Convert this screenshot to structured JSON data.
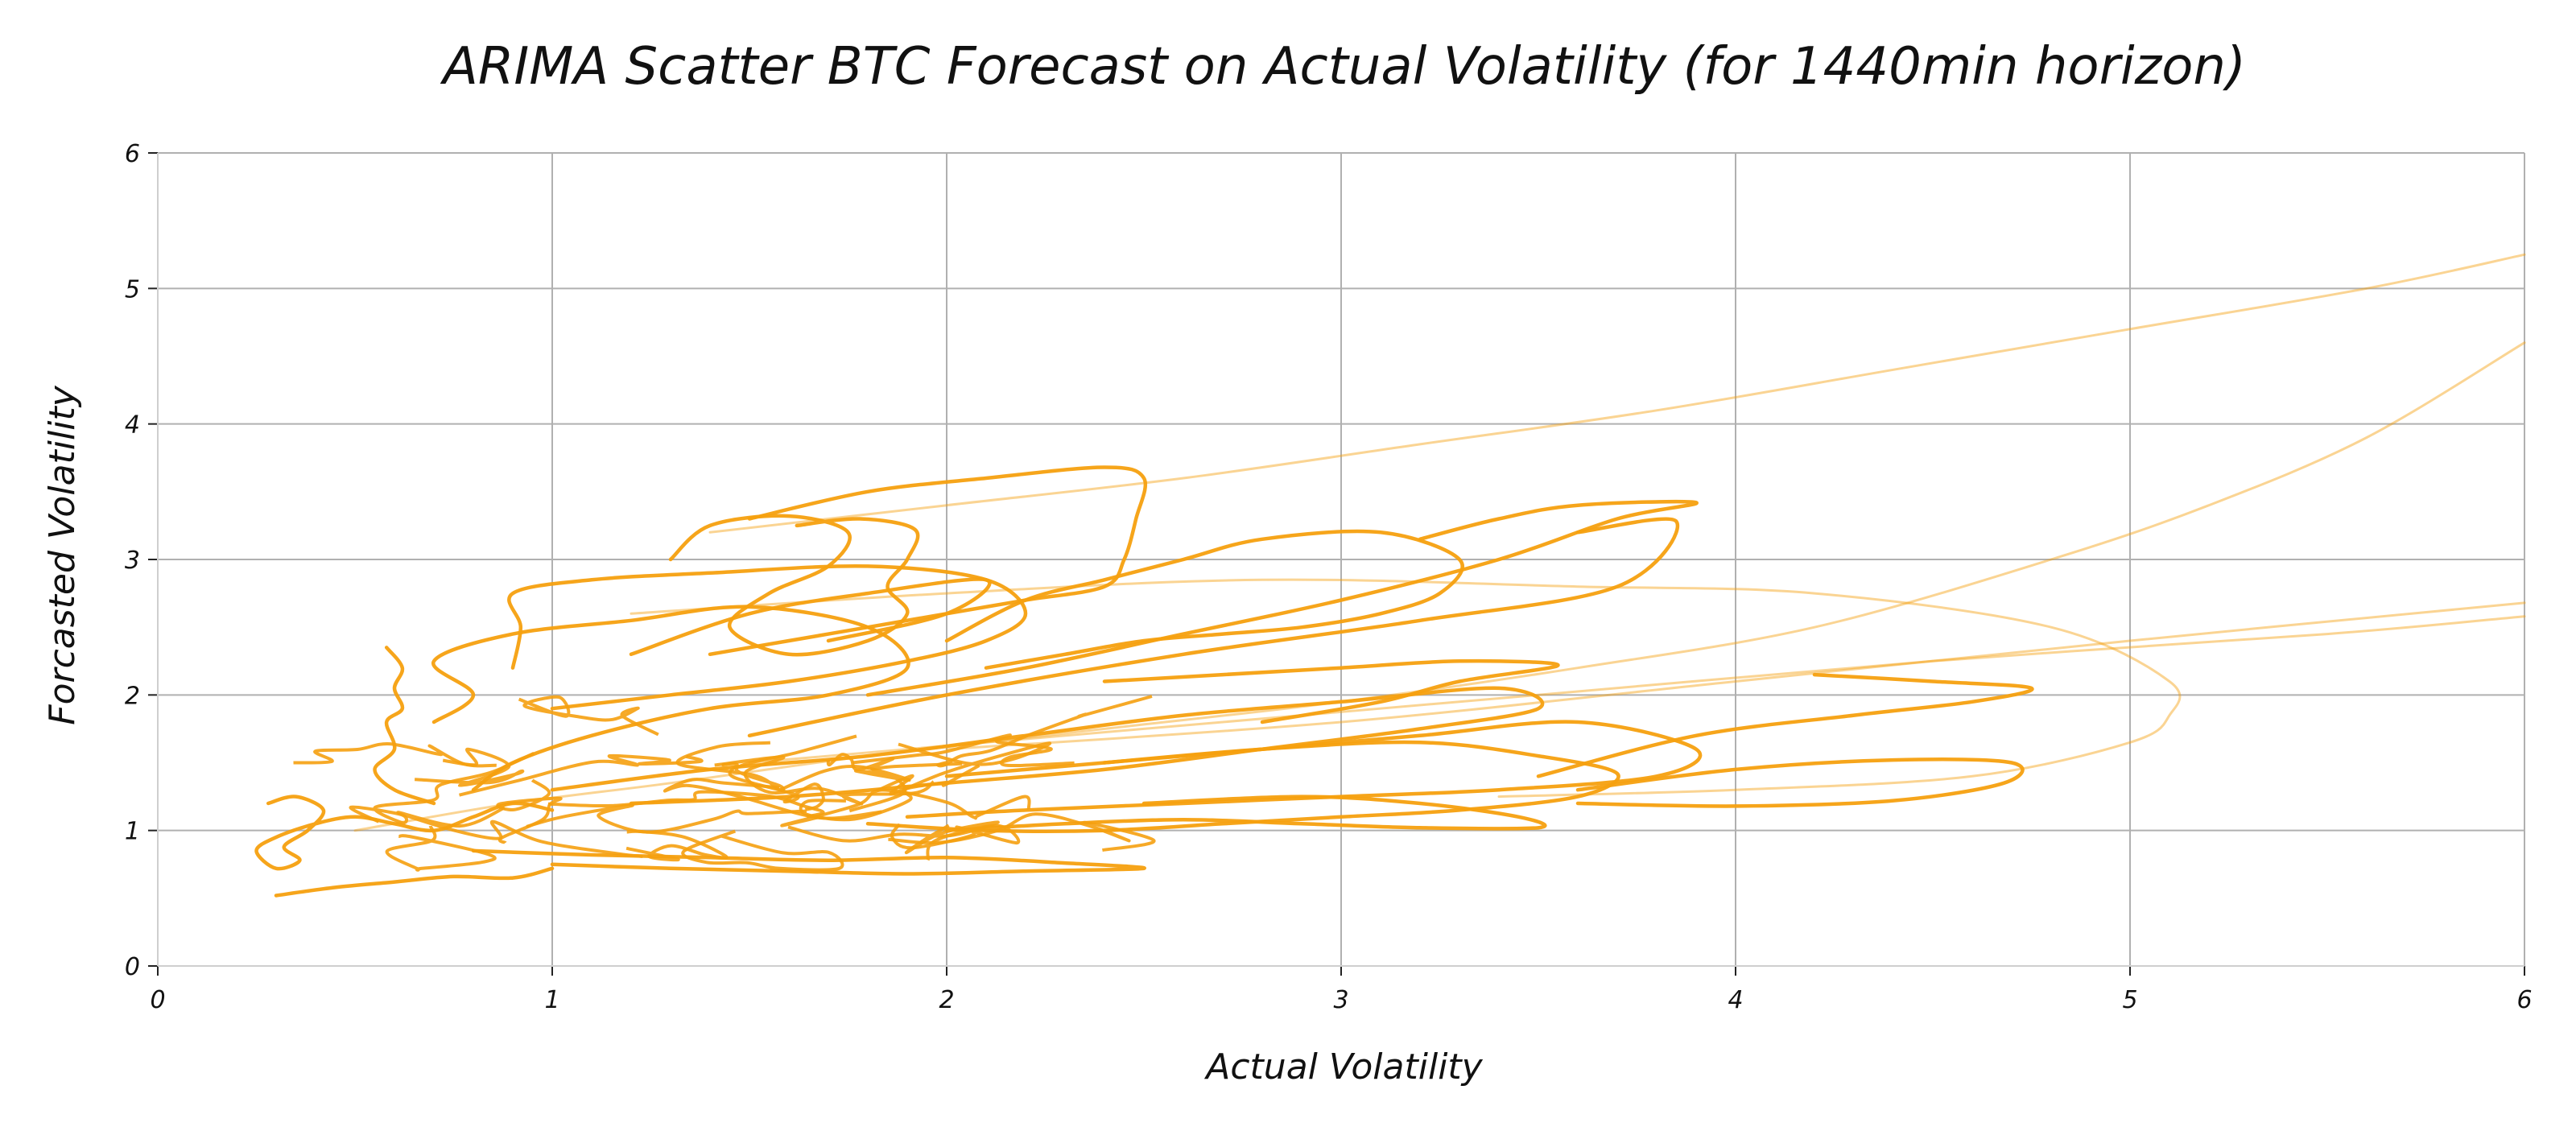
{
  "chart_data": {
    "type": "scatter",
    "title": "ARIMA Scatter BTC Forecast on Actual Volatility (for 1440min horizon)",
    "xlabel": "Actual Volatility",
    "ylabel": "Forcasted Volatility",
    "xlim": [
      0,
      6
    ],
    "ylim": [
      0,
      6
    ],
    "x_ticks": [
      "0",
      "1",
      "2",
      "3",
      "4",
      "5",
      "6"
    ],
    "y_ticks": [
      "0",
      "1",
      "2",
      "3",
      "4",
      "5",
      "6"
    ],
    "grid": true,
    "legend": "none",
    "color": "#f5a00f",
    "series": [
      {
        "style": "faint",
        "points": [
          [
            0.5,
            1.0
          ],
          [
            0.9,
            1.2
          ],
          [
            1.3,
            1.35
          ],
          [
            1.8,
            1.55
          ],
          [
            2.4,
            1.75
          ],
          [
            3.0,
            1.95
          ],
          [
            3.6,
            2.2
          ],
          [
            4.2,
            2.5
          ],
          [
            4.8,
            3.0
          ],
          [
            5.2,
            3.4
          ],
          [
            5.6,
            3.9
          ],
          [
            6.0,
            4.6
          ]
        ]
      },
      {
        "style": "faint",
        "points": [
          [
            1.4,
            3.2
          ],
          [
            2.0,
            3.4
          ],
          [
            2.6,
            3.6
          ],
          [
            3.2,
            3.85
          ],
          [
            3.8,
            4.1
          ],
          [
            4.4,
            4.4
          ],
          [
            5.0,
            4.7
          ],
          [
            5.6,
            5.0
          ],
          [
            6.0,
            5.25
          ]
        ]
      },
      {
        "style": "faint",
        "points": [
          [
            1.2,
            2.6
          ],
          [
            2.0,
            2.75
          ],
          [
            2.8,
            2.85
          ],
          [
            3.6,
            2.8
          ],
          [
            4.2,
            2.75
          ],
          [
            4.8,
            2.5
          ],
          [
            5.1,
            2.1
          ],
          [
            5.1,
            1.85
          ],
          [
            5.0,
            1.65
          ],
          [
            4.6,
            1.4
          ],
          [
            4.0,
            1.3
          ],
          [
            3.4,
            1.25
          ]
        ]
      },
      {
        "style": "faint",
        "points": [
          [
            2.0,
            1.6
          ],
          [
            3.0,
            1.8
          ],
          [
            4.0,
            2.1
          ],
          [
            5.0,
            2.4
          ],
          [
            6.0,
            2.68
          ]
        ]
      },
      {
        "style": "faint",
        "points": [
          [
            1.5,
            1.5
          ],
          [
            2.5,
            1.75
          ],
          [
            3.5,
            2.0
          ],
          [
            4.5,
            2.25
          ],
          [
            5.5,
            2.45
          ],
          [
            6.0,
            2.58
          ]
        ]
      },
      {
        "style": "solid",
        "points": [
          [
            0.28,
            1.2
          ],
          [
            0.35,
            1.25
          ],
          [
            0.42,
            1.15
          ],
          [
            0.38,
            1.0
          ],
          [
            0.32,
            0.88
          ],
          [
            0.36,
            0.78
          ],
          [
            0.3,
            0.72
          ],
          [
            0.25,
            0.85
          ],
          [
            0.3,
            0.95
          ],
          [
            0.4,
            1.05
          ],
          [
            0.5,
            1.1
          ],
          [
            0.6,
            1.05
          ],
          [
            0.7,
            1.0
          ],
          [
            0.8,
            1.1
          ],
          [
            0.9,
            1.2
          ],
          [
            1.0,
            1.15
          ]
        ]
      },
      {
        "style": "solid",
        "points": [
          [
            0.3,
            0.52
          ],
          [
            0.45,
            0.58
          ],
          [
            0.6,
            0.62
          ],
          [
            0.75,
            0.66
          ],
          [
            0.9,
            0.65
          ],
          [
            1.0,
            0.72
          ]
        ]
      },
      {
        "style": "solid",
        "points": [
          [
            0.58,
            2.35
          ],
          [
            0.62,
            2.2
          ],
          [
            0.6,
            2.05
          ],
          [
            0.62,
            1.9
          ],
          [
            0.58,
            1.8
          ],
          [
            0.6,
            1.6
          ],
          [
            0.55,
            1.45
          ],
          [
            0.6,
            1.3
          ],
          [
            0.7,
            1.2
          ]
        ]
      },
      {
        "style": "solid",
        "points": [
          [
            0.7,
            1.8
          ],
          [
            0.8,
            2.0
          ],
          [
            0.7,
            2.25
          ],
          [
            0.9,
            2.45
          ],
          [
            1.2,
            2.55
          ],
          [
            1.5,
            2.65
          ],
          [
            1.8,
            2.5
          ],
          [
            1.9,
            2.2
          ],
          [
            1.7,
            2.0
          ],
          [
            1.4,
            1.9
          ],
          [
            1.1,
            1.7
          ],
          [
            0.9,
            1.5
          ],
          [
            0.8,
            1.3
          ]
        ]
      },
      {
        "style": "solid",
        "points": [
          [
            0.9,
            2.2
          ],
          [
            0.92,
            2.5
          ],
          [
            0.9,
            2.75
          ],
          [
            1.1,
            2.85
          ],
          [
            1.4,
            2.9
          ],
          [
            1.8,
            2.95
          ],
          [
            2.1,
            2.85
          ],
          [
            2.2,
            2.6
          ],
          [
            2.1,
            2.4
          ],
          [
            1.9,
            2.25
          ],
          [
            1.6,
            2.1
          ],
          [
            1.3,
            2.0
          ],
          [
            1.0,
            1.9
          ]
        ]
      },
      {
        "style": "solid",
        "points": [
          [
            1.3,
            3.0
          ],
          [
            1.4,
            3.25
          ],
          [
            1.6,
            3.32
          ],
          [
            1.75,
            3.2
          ],
          [
            1.7,
            2.95
          ],
          [
            1.55,
            2.75
          ],
          [
            1.45,
            2.5
          ],
          [
            1.6,
            2.3
          ],
          [
            1.8,
            2.4
          ],
          [
            1.9,
            2.6
          ],
          [
            1.85,
            2.8
          ],
          [
            1.9,
            3.0
          ],
          [
            1.92,
            3.22
          ],
          [
            1.78,
            3.3
          ],
          [
            1.62,
            3.25
          ]
        ]
      },
      {
        "style": "solid",
        "points": [
          [
            1.5,
            3.3
          ],
          [
            1.8,
            3.5
          ],
          [
            2.1,
            3.6
          ],
          [
            2.4,
            3.68
          ],
          [
            2.5,
            3.6
          ],
          [
            2.48,
            3.3
          ],
          [
            2.45,
            3.0
          ],
          [
            2.4,
            2.8
          ],
          [
            2.2,
            2.7
          ],
          [
            2.0,
            2.6
          ],
          [
            1.8,
            2.5
          ],
          [
            1.6,
            2.4
          ],
          [
            1.4,
            2.3
          ]
        ]
      },
      {
        "style": "solid",
        "points": [
          [
            1.2,
            2.3
          ],
          [
            1.5,
            2.6
          ],
          [
            1.8,
            2.75
          ],
          [
            2.1,
            2.85
          ],
          [
            2.0,
            2.6
          ],
          [
            1.7,
            2.4
          ]
        ]
      },
      {
        "style": "solid",
        "points": [
          [
            2.0,
            2.4
          ],
          [
            2.2,
            2.7
          ],
          [
            2.4,
            2.85
          ],
          [
            2.6,
            3.0
          ],
          [
            2.8,
            3.15
          ],
          [
            3.1,
            3.2
          ],
          [
            3.3,
            3.0
          ],
          [
            3.25,
            2.75
          ],
          [
            3.1,
            2.6
          ],
          [
            2.9,
            2.5
          ],
          [
            2.7,
            2.45
          ],
          [
            2.5,
            2.4
          ],
          [
            2.3,
            2.3
          ],
          [
            2.1,
            2.2
          ]
        ]
      },
      {
        "style": "solid",
        "points": [
          [
            1.8,
            2.0
          ],
          [
            2.2,
            2.2
          ],
          [
            2.6,
            2.45
          ],
          [
            3.0,
            2.7
          ],
          [
            3.4,
            3.0
          ],
          [
            3.7,
            3.3
          ],
          [
            3.9,
            3.42
          ],
          [
            3.6,
            3.4
          ],
          [
            3.4,
            3.3
          ],
          [
            3.2,
            3.15
          ]
        ]
      },
      {
        "style": "solid",
        "points": [
          [
            1.5,
            1.7
          ],
          [
            2.0,
            2.0
          ],
          [
            2.6,
            2.3
          ],
          [
            3.2,
            2.55
          ],
          [
            3.7,
            2.8
          ],
          [
            3.85,
            3.28
          ],
          [
            3.6,
            3.2
          ]
        ]
      },
      {
        "style": "solid",
        "points": [
          [
            2.4,
            1.5
          ],
          [
            2.8,
            1.6
          ],
          [
            3.2,
            1.65
          ],
          [
            3.5,
            1.55
          ],
          [
            3.7,
            1.42
          ],
          [
            3.6,
            1.25
          ],
          [
            3.3,
            1.15
          ],
          [
            3.0,
            1.1
          ],
          [
            2.7,
            1.05
          ],
          [
            2.4,
            1.0
          ],
          [
            2.1,
            1.0
          ],
          [
            1.8,
            1.05
          ]
        ]
      },
      {
        "style": "solid",
        "points": [
          [
            2.0,
            1.4
          ],
          [
            2.4,
            1.5
          ],
          [
            2.8,
            1.6
          ],
          [
            3.2,
            1.7
          ],
          [
            3.6,
            1.8
          ],
          [
            3.9,
            1.6
          ],
          [
            3.8,
            1.4
          ],
          [
            3.4,
            1.3
          ],
          [
            3.0,
            1.25
          ],
          [
            2.6,
            1.2
          ],
          [
            2.2,
            1.15
          ],
          [
            1.9,
            1.1
          ]
        ]
      },
      {
        "style": "solid",
        "points": [
          [
            3.6,
            1.3
          ],
          [
            4.0,
            1.45
          ],
          [
            4.4,
            1.52
          ],
          [
            4.7,
            1.5
          ],
          [
            4.68,
            1.35
          ],
          [
            4.4,
            1.22
          ],
          [
            4.0,
            1.18
          ],
          [
            3.6,
            1.2
          ]
        ]
      },
      {
        "style": "solid",
        "points": [
          [
            3.5,
            1.4
          ],
          [
            3.9,
            1.7
          ],
          [
            4.3,
            1.85
          ],
          [
            4.6,
            1.95
          ],
          [
            4.75,
            2.05
          ],
          [
            4.5,
            2.1
          ],
          [
            4.2,
            2.15
          ]
        ]
      },
      {
        "style": "solid",
        "points": [
          [
            2.8,
            1.8
          ],
          [
            3.1,
            1.95
          ],
          [
            3.3,
            2.1
          ],
          [
            3.55,
            2.22
          ],
          [
            3.3,
            2.25
          ],
          [
            3.0,
            2.2
          ],
          [
            2.7,
            2.15
          ],
          [
            2.4,
            2.1
          ]
        ]
      },
      {
        "style": "solid",
        "points": [
          [
            1.0,
            0.75
          ],
          [
            1.3,
            0.72
          ],
          [
            1.6,
            0.7
          ],
          [
            1.9,
            0.68
          ],
          [
            2.2,
            0.7
          ],
          [
            2.5,
            0.72
          ],
          [
            2.3,
            0.76
          ],
          [
            2.0,
            0.8
          ],
          [
            1.7,
            0.78
          ],
          [
            1.4,
            0.8
          ],
          [
            1.1,
            0.82
          ],
          [
            0.8,
            0.85
          ]
        ]
      },
      {
        "style": "solid",
        "points": [
          [
            1.0,
            1.3
          ],
          [
            1.4,
            1.45
          ],
          [
            1.8,
            1.55
          ],
          [
            2.2,
            1.7
          ],
          [
            2.6,
            1.85
          ],
          [
            3.0,
            1.95
          ],
          [
            3.4,
            2.05
          ],
          [
            3.5,
            1.9
          ],
          [
            3.2,
            1.75
          ],
          [
            2.8,
            1.6
          ],
          [
            2.4,
            1.45
          ],
          [
            2.0,
            1.35
          ],
          [
            1.6,
            1.25
          ],
          [
            1.2,
            1.2
          ]
        ]
      },
      {
        "style": "solid",
        "points": [
          [
            2.5,
            1.2
          ],
          [
            2.9,
            1.25
          ],
          [
            3.2,
            1.2
          ],
          [
            3.45,
            1.1
          ],
          [
            3.5,
            1.02
          ],
          [
            3.2,
            1.02
          ],
          [
            2.9,
            1.05
          ],
          [
            2.6,
            1.08
          ],
          [
            2.3,
            1.05
          ],
          [
            2.0,
            1.0
          ]
        ]
      }
    ]
  }
}
